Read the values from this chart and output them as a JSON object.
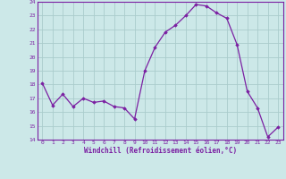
{
  "x": [
    0,
    1,
    2,
    3,
    4,
    5,
    6,
    7,
    8,
    9,
    10,
    11,
    12,
    13,
    14,
    15,
    16,
    17,
    18,
    19,
    20,
    21,
    22,
    23
  ],
  "y": [
    18.1,
    16.5,
    17.3,
    16.4,
    17.0,
    16.7,
    16.8,
    16.4,
    16.3,
    15.5,
    19.0,
    20.7,
    21.8,
    22.3,
    23.0,
    23.8,
    23.7,
    23.2,
    22.8,
    20.9,
    17.5,
    16.3,
    14.2,
    14.9
  ],
  "line_color": "#7b1fa2",
  "marker": "D",
  "marker_size": 1.8,
  "line_width": 0.9,
  "bg_color": "#cce8e8",
  "grid_color": "#aacccc",
  "xlabel": "Windchill (Refroidissement éolien,°C)",
  "xlabel_color": "#7b1fa2",
  "tick_color": "#7b1fa2",
  "ylim": [
    14,
    24
  ],
  "xlim": [
    -0.5,
    23.5
  ],
  "yticks": [
    14,
    15,
    16,
    17,
    18,
    19,
    20,
    21,
    22,
    23,
    24
  ],
  "xticks": [
    0,
    1,
    2,
    3,
    4,
    5,
    6,
    7,
    8,
    9,
    10,
    11,
    12,
    13,
    14,
    15,
    16,
    17,
    18,
    19,
    20,
    21,
    22,
    23
  ]
}
